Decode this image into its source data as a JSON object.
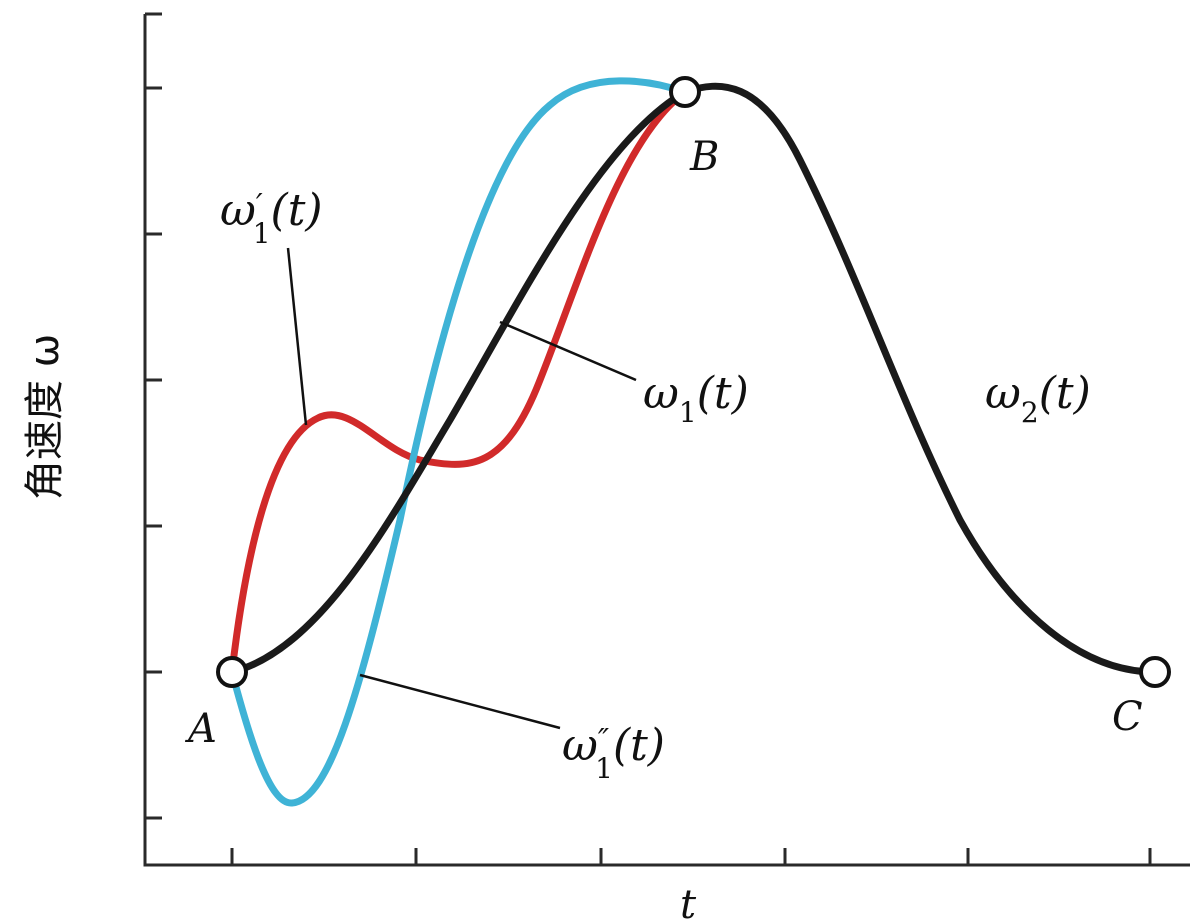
{
  "axes": {
    "x_label": "t",
    "y_label": "角速度 ω"
  },
  "points": [
    {
      "name": "A"
    },
    {
      "name": "B"
    },
    {
      "name": "C"
    }
  ],
  "curve_labels": {
    "w1_prime": {
      "base": "ω",
      "prime": "′",
      "sub": "1",
      "arg": "(t)"
    },
    "w1": {
      "base": "ω",
      "sub": "1",
      "arg": "(t)"
    },
    "w2": {
      "base": "ω",
      "sub": "2",
      "arg": "(t)"
    },
    "w1_dprime": {
      "base": "ω",
      "prime": "″",
      "sub": "1",
      "arg": "(t)"
    }
  },
  "colors": {
    "w1": "#1a1a1a",
    "w1_prime": "#d12a2a",
    "w1_dprime": "#3fb3d6",
    "axis": "#2a2a2a"
  }
}
